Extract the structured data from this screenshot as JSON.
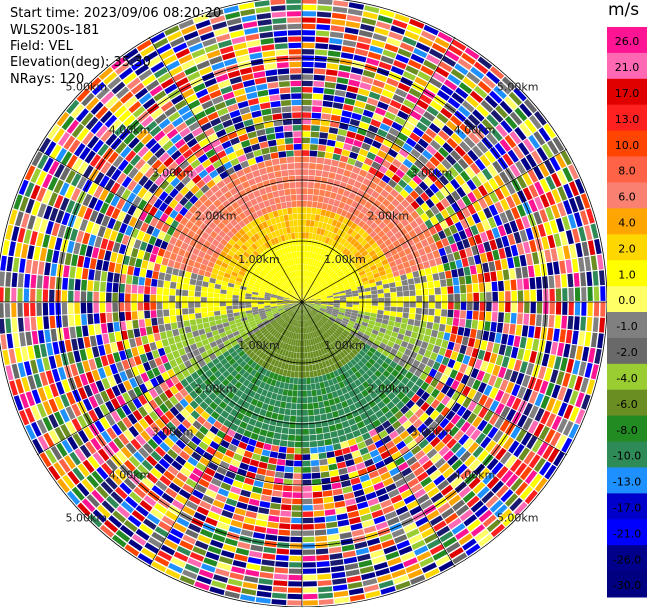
{
  "header": {
    "start_time": "Start time: 2023/09/06 08:20:20",
    "instrument": "WLS200s-181",
    "field": "Field: VEL",
    "elevation": "Elevation(deg): 35.30",
    "nrays": "NRays: 120"
  },
  "colorbar": {
    "unit": "m/s",
    "labels": [
      "26.0",
      "21.0",
      "17.0",
      "13.0",
      "10.0",
      "8.0",
      "6.0",
      "4.0",
      "2.0",
      "1.0",
      "0.0",
      "-1.0",
      "-2.0",
      "-4.0",
      "-6.0",
      "-8.0",
      "-10.0",
      "-13.0",
      "-17.0",
      "-21.0",
      "-26.0",
      "-30.0"
    ],
    "colors": [
      "#ff1493",
      "#ff69b4",
      "#e00000",
      "#ff2020",
      "#ff4500",
      "#ff6347",
      "#fa8072",
      "#ffa500",
      "#ffd700",
      "#ffff00",
      "#ffff66",
      "#808080",
      "#696969",
      "#9acd32",
      "#6b8e23",
      "#228b22",
      "#2e8b57",
      "#1e90ff",
      "#0000cd",
      "#0000ff",
      "#00008b",
      "#000080",
      "#191970"
    ]
  },
  "chart_data": {
    "type": "heatmap",
    "title": "",
    "field": "VEL",
    "units": "m/s",
    "elevation_deg": 35.3,
    "nrays": 120,
    "range_rings_km": [
      "1.00km",
      "2.00km",
      "3.00km",
      "4.00km",
      "5.00km"
    ],
    "ring_values_km": [
      1,
      2,
      3,
      4,
      5
    ],
    "max_range_km": 5.0,
    "valid_range_km": 2.4,
    "scale": [
      -30.0,
      -26.0,
      -21.0,
      -17.0,
      -13.0,
      -10.0,
      -8.0,
      -6.0,
      -4.0,
      -2.0,
      -1.0,
      0.0,
      1.0,
      2.0,
      4.0,
      6.0,
      8.0,
      10.0,
      13.0,
      17.0,
      21.0,
      26.0
    ],
    "pattern": "positive velocities (yellow to salmon) in the northern half, negative velocities (olive to green) in the southern half; beyond about 2.4 km the returns are random noise"
  }
}
